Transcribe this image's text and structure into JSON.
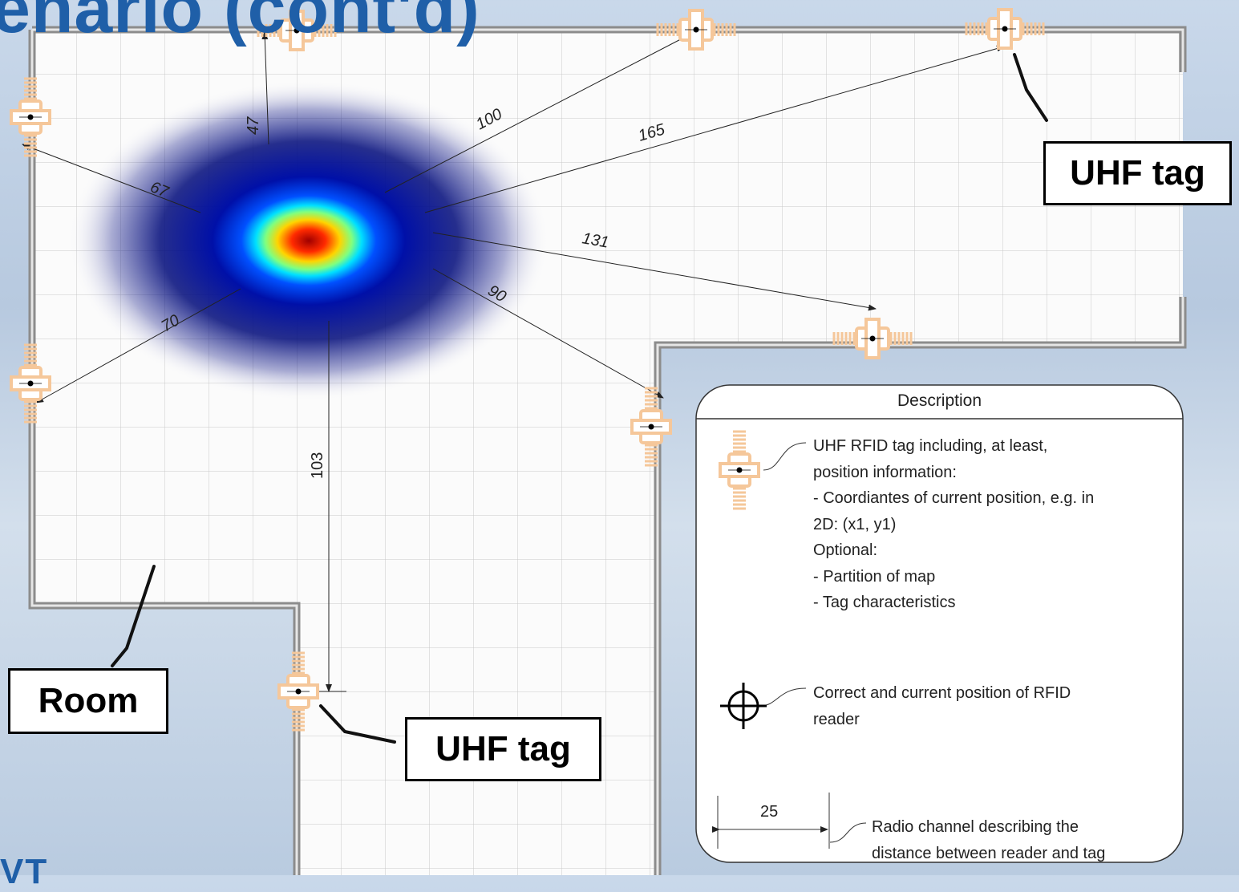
{
  "slide": {
    "title_fragment": "enario (cont'd)"
  },
  "distances": [
    "47",
    "100",
    "165",
    "67",
    "131",
    "90",
    "70",
    "103"
  ],
  "callouts": {
    "uhf_tag_top": "UHF tag",
    "uhf_tag_bottom": "UHF tag",
    "room": "Room"
  },
  "legend": {
    "title": "Description",
    "tag_lines": [
      "UHF RFID tag including, at least,",
      "position information:",
      "- Coordiantes of current position, e.g. in",
      "2D: (x1, y1)",
      "Optional:",
      "- Partition of map",
      "- Tag characteristics"
    ],
    "reader_lines": [
      "Correct and current position of RFID",
      "reader"
    ],
    "scale_value": "25",
    "channel_lines": [
      "Radio channel describing the",
      "distance between reader and tag"
    ]
  },
  "colors": {
    "title_blue": "#1f5fa8",
    "tag_orange": "#f5c79a",
    "wall_gray": "#8c8c8c"
  },
  "icons": [
    "uhf-tag-icon",
    "crosshair-icon"
  ],
  "logo_fragment": "VT"
}
